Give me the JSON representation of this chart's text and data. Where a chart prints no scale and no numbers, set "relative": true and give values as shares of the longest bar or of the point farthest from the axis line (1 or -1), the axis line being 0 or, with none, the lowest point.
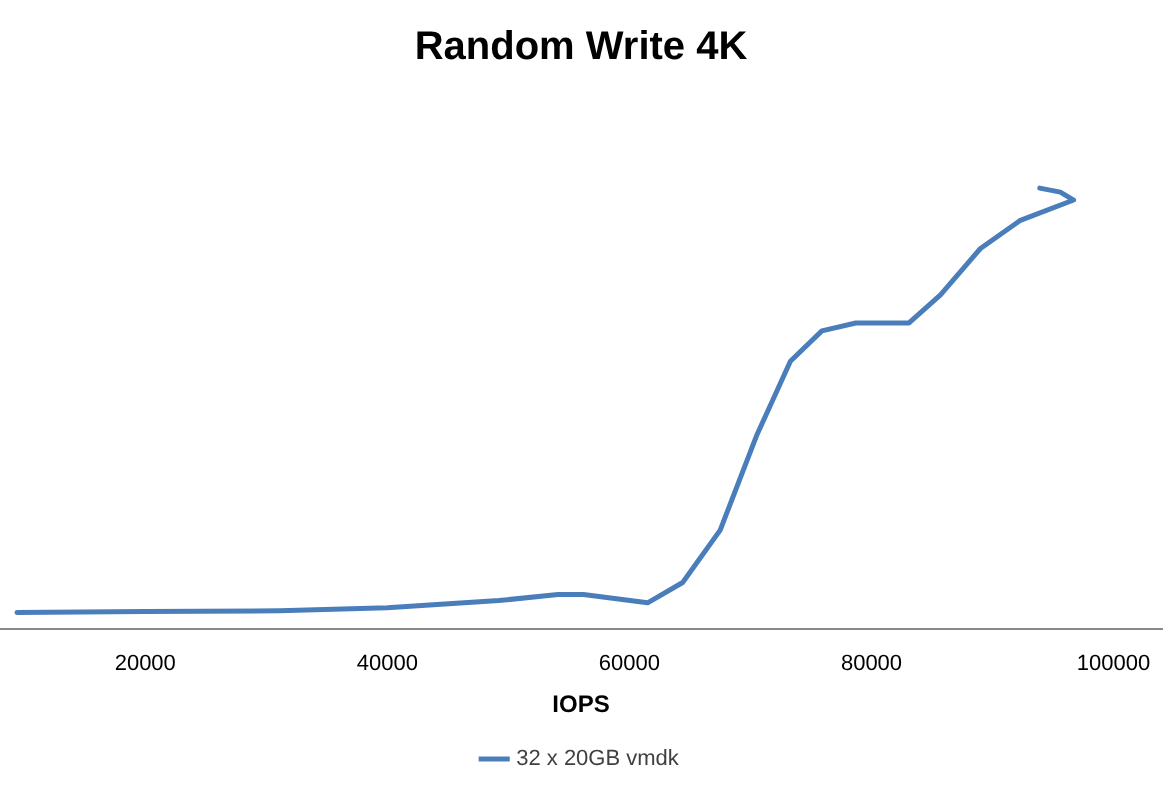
{
  "chart_data": {
    "type": "line",
    "title": "Random Write 4K",
    "xlabel": "IOPS",
    "relative": true,
    "legend": "bottom",
    "marker": "none",
    "line_style": "solid",
    "xlim": [
      8000,
      104000
    ],
    "xticks": [
      20000,
      40000,
      60000,
      80000,
      100000
    ],
    "series": [
      {
        "name": "32 x 20GB vmdk",
        "color": "#4a7ebb",
        "x": [
          9400,
          20000,
          31100,
          40000,
          49200,
          54100,
          56200,
          61500,
          64400,
          67500,
          70500,
          73300,
          75900,
          78700,
          83100,
          85700,
          89000,
          92300,
          96700,
          95600,
          93900
        ],
        "values": [
          0.037,
          0.039,
          0.041,
          0.048,
          0.064,
          0.078,
          0.078,
          0.059,
          0.105,
          0.224,
          0.438,
          0.607,
          0.676,
          0.694,
          0.694,
          0.758,
          0.863,
          0.927,
          0.973,
          0.991,
          1.0
        ]
      }
    ]
  }
}
